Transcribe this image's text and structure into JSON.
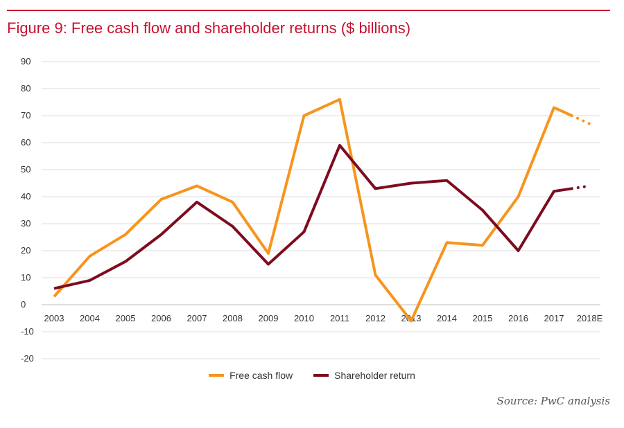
{
  "chart_data": {
    "type": "line",
    "title": "Figure 9: Free cash flow and shareholder returns ($ billions)",
    "categories": [
      "2003",
      "2004",
      "2005",
      "2006",
      "2007",
      "2008",
      "2009",
      "2010",
      "2011",
      "2012",
      "2013",
      "2014",
      "2015",
      "2016",
      "2017",
      "2018E"
    ],
    "ylim": [
      -20,
      90
    ],
    "yticks": [
      90,
      80,
      70,
      60,
      50,
      40,
      30,
      20,
      10,
      0,
      -10,
      -20
    ],
    "series": [
      {
        "name": "Free cash flow",
        "color": "#f7941d",
        "values": [
          3,
          18,
          26,
          39,
          44,
          38,
          19,
          70,
          76,
          11,
          -6,
          23,
          22,
          40,
          73,
          67
        ],
        "estimate": [
          false,
          false,
          false,
          false,
          false,
          false,
          false,
          false,
          false,
          false,
          false,
          false,
          false,
          false,
          false,
          true
        ]
      },
      {
        "name": "Shareholder return",
        "color": "#7d0c1f",
        "values": [
          6,
          9,
          16,
          26,
          38,
          29,
          15,
          27,
          59,
          43,
          45,
          46,
          35,
          20,
          42,
          44
        ],
        "estimate": [
          false,
          false,
          false,
          false,
          false,
          false,
          false,
          false,
          false,
          false,
          false,
          false,
          false,
          false,
          false,
          true
        ]
      }
    ],
    "legend_position": "bottom-center"
  },
  "source": "Source: PwC analysis"
}
